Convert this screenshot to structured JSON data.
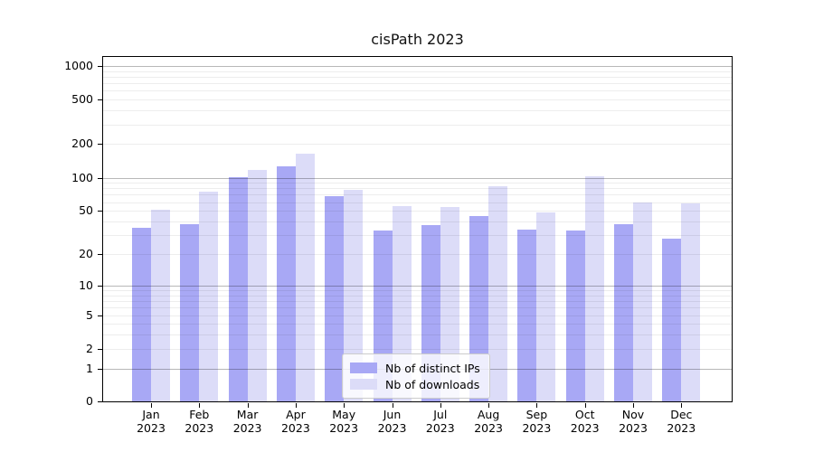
{
  "chart_data": {
    "type": "bar",
    "title": "cisPath 2023",
    "categories": [
      "Jan",
      "Feb",
      "Mar",
      "Apr",
      "May",
      "Jun",
      "Jul",
      "Aug",
      "Sep",
      "Oct",
      "Nov",
      "Dec"
    ],
    "year_label": "2023",
    "series": [
      {
        "name": "Nb of distinct IPs",
        "color": "#a8a8f5",
        "values": [
          35,
          38,
          101,
          127,
          68,
          33,
          37,
          45,
          34,
          33,
          38,
          28
        ]
      },
      {
        "name": "Nb of downloads",
        "color": "#dcdcf8",
        "values": [
          51,
          75,
          118,
          163,
          77,
          55,
          54,
          84,
          48,
          102,
          60,
          59
        ]
      }
    ],
    "yticks": [
      0,
      1,
      2,
      5,
      10,
      20,
      50,
      100,
      200,
      500,
      1000
    ],
    "yscale": "log10(1+v)",
    "ylim": [
      0,
      1180
    ],
    "xlabel": "",
    "ylabel": "",
    "grid": "horizontal",
    "legend_position": "inside-bottom-center"
  }
}
